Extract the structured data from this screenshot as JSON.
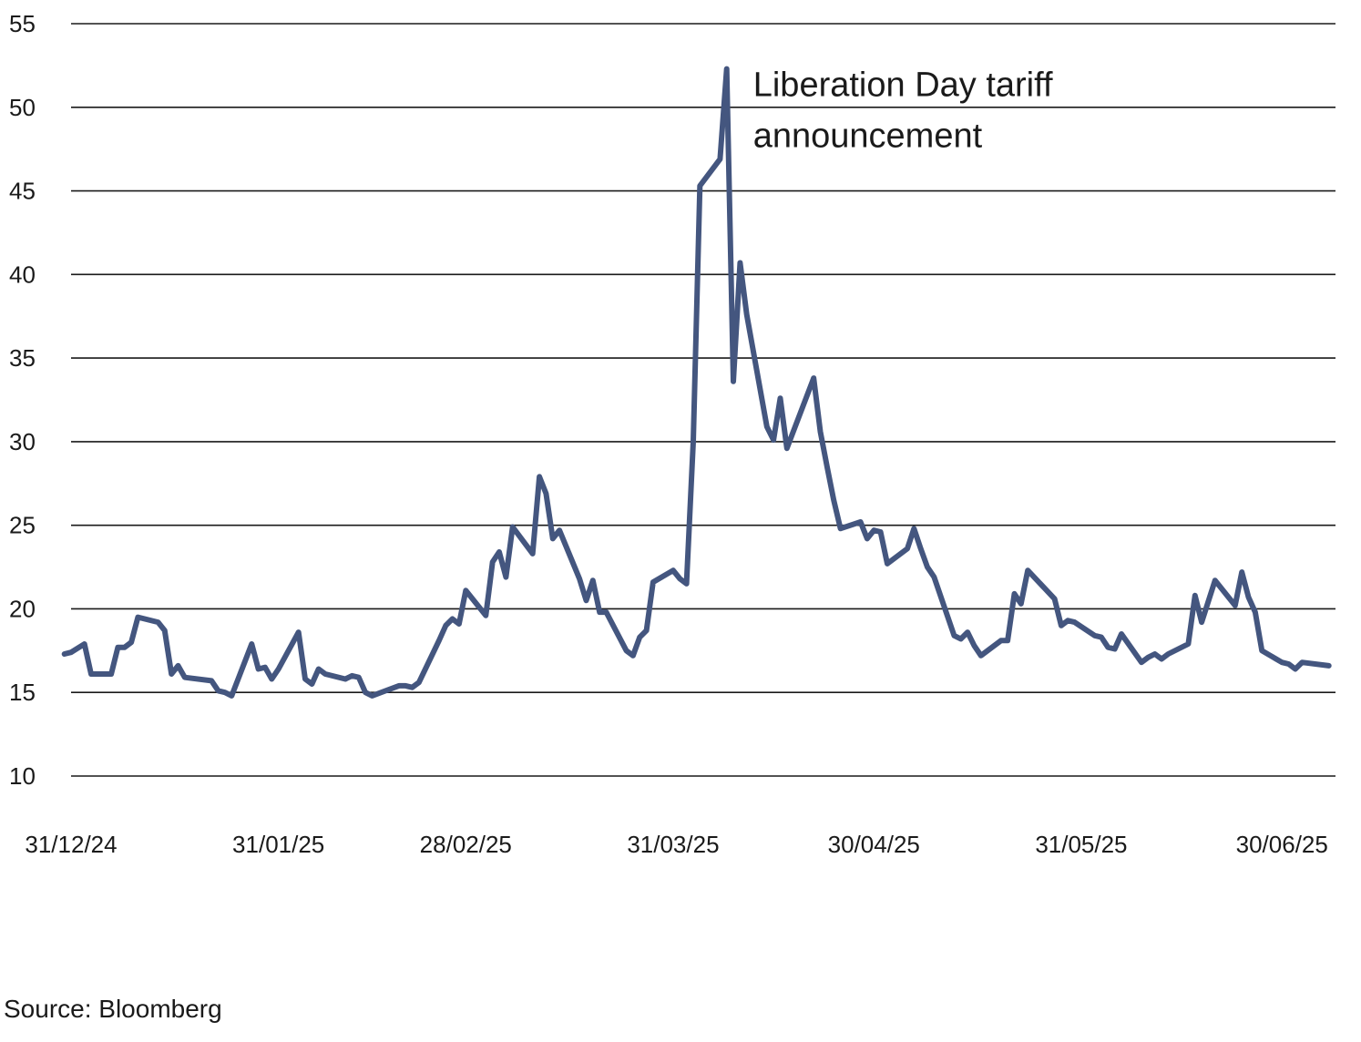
{
  "chart_data": {
    "type": "line",
    "title": "",
    "xlabel": "",
    "ylabel": "",
    "ylim": [
      10,
      55
    ],
    "yticks": [
      10,
      15,
      20,
      25,
      30,
      35,
      40,
      45,
      50,
      55
    ],
    "xlim": [
      "2024-12-31",
      "2025-07-08"
    ],
    "xticks": [
      {
        "date": "2024-12-31",
        "label": "31/12/24"
      },
      {
        "date": "2025-01-31",
        "label": "31/01/25"
      },
      {
        "date": "2025-02-28",
        "label": "28/02/25"
      },
      {
        "date": "2025-03-31",
        "label": "31/03/25"
      },
      {
        "date": "2025-04-30",
        "label": "30/04/25"
      },
      {
        "date": "2025-05-31",
        "label": "31/05/25"
      },
      {
        "date": "2025-06-30",
        "label": "30/06/25"
      }
    ],
    "grid": true,
    "line_color": "#44567f",
    "grid_color": "#1a1a1a",
    "annotation": {
      "lines": [
        "Liberation Day tariff",
        "announcement"
      ],
      "date": "2025-04-11",
      "y": 51
    },
    "series": [
      {
        "x": [
          "2024-12-30",
          "2024-12-31",
          "2025-01-02",
          "2025-01-03",
          "2025-01-06",
          "2025-01-07",
          "2025-01-08",
          "2025-01-09",
          "2025-01-10",
          "2025-01-13",
          "2025-01-14",
          "2025-01-15",
          "2025-01-16",
          "2025-01-17",
          "2025-01-21",
          "2025-01-22",
          "2025-01-23",
          "2025-01-24",
          "2025-01-27",
          "2025-01-28",
          "2025-01-29",
          "2025-01-30",
          "2025-01-31",
          "2025-02-03",
          "2025-02-04",
          "2025-02-05",
          "2025-02-06",
          "2025-02-07",
          "2025-02-10",
          "2025-02-11",
          "2025-02-12",
          "2025-02-13",
          "2025-02-14",
          "2025-02-18",
          "2025-02-19",
          "2025-02-20",
          "2025-02-21",
          "2025-02-24",
          "2025-02-25",
          "2025-02-26",
          "2025-02-27",
          "2025-02-28",
          "2025-03-03",
          "2025-03-04",
          "2025-03-05",
          "2025-03-06",
          "2025-03-07",
          "2025-03-10",
          "2025-03-11",
          "2025-03-12",
          "2025-03-13",
          "2025-03-14",
          "2025-03-17",
          "2025-03-18",
          "2025-03-19",
          "2025-03-20",
          "2025-03-21",
          "2025-03-24",
          "2025-03-25",
          "2025-03-26",
          "2025-03-27",
          "2025-03-28",
          "2025-03-31",
          "2025-04-01",
          "2025-04-02",
          "2025-04-03",
          "2025-04-04",
          "2025-04-07",
          "2025-04-08",
          "2025-04-09",
          "2025-04-10",
          "2025-04-11",
          "2025-04-14",
          "2025-04-15",
          "2025-04-16",
          "2025-04-17",
          "2025-04-21",
          "2025-04-22",
          "2025-04-23",
          "2025-04-24",
          "2025-04-25",
          "2025-04-28",
          "2025-04-29",
          "2025-04-30",
          "2025-05-01",
          "2025-05-02",
          "2025-05-05",
          "2025-05-06",
          "2025-05-07",
          "2025-05-08",
          "2025-05-09",
          "2025-05-12",
          "2025-05-13",
          "2025-05-14",
          "2025-05-15",
          "2025-05-16",
          "2025-05-19",
          "2025-05-20",
          "2025-05-21",
          "2025-05-22",
          "2025-05-23",
          "2025-05-27",
          "2025-05-28",
          "2025-05-29",
          "2025-05-30",
          "2025-06-02",
          "2025-06-03",
          "2025-06-04",
          "2025-06-05",
          "2025-06-06",
          "2025-06-09",
          "2025-06-10",
          "2025-06-11",
          "2025-06-12",
          "2025-06-13",
          "2025-06-16",
          "2025-06-17",
          "2025-06-18",
          "2025-06-20",
          "2025-06-23",
          "2025-06-24",
          "2025-06-25",
          "2025-06-26",
          "2025-06-27",
          "2025-06-30",
          "2025-07-01",
          "2025-07-02",
          "2025-07-03",
          "2025-07-07"
        ],
        "values": [
          17.3,
          17.4,
          17.9,
          16.1,
          16.1,
          17.7,
          17.7,
          18.0,
          19.5,
          19.2,
          18.7,
          16.1,
          16.6,
          15.9,
          15.7,
          15.1,
          15.0,
          14.8,
          17.9,
          16.4,
          16.5,
          15.8,
          16.4,
          18.6,
          15.8,
          15.5,
          16.4,
          16.1,
          15.8,
          16.0,
          15.9,
          15.0,
          14.8,
          15.4,
          15.4,
          15.3,
          15.6,
          18.1,
          19.0,
          19.4,
          19.1,
          21.1,
          19.6,
          22.8,
          23.4,
          21.9,
          24.9,
          23.3,
          27.9,
          26.9,
          24.2,
          24.7,
          21.8,
          20.5,
          21.7,
          19.8,
          19.8,
          17.5,
          17.2,
          18.3,
          18.7,
          21.6,
          22.3,
          21.8,
          21.5,
          30.0,
          45.3,
          46.9,
          52.3,
          33.6,
          40.7,
          37.6,
          30.9,
          30.1,
          32.6,
          29.6,
          33.8,
          30.6,
          28.5,
          26.5,
          24.8,
          25.2,
          24.2,
          24.7,
          24.6,
          22.7,
          23.6,
          24.8,
          23.6,
          22.5,
          21.9,
          18.4,
          18.2,
          18.6,
          17.8,
          17.2,
          18.1,
          18.1,
          20.9,
          20.3,
          22.3,
          20.6,
          19.0,
          19.3,
          19.2,
          18.4,
          18.3,
          17.7,
          17.6,
          18.5,
          16.8,
          17.1,
          17.3,
          17.0,
          17.3,
          17.9,
          20.8,
          19.2,
          21.7,
          20.2,
          22.2,
          20.7,
          19.8,
          17.5,
          16.8,
          16.7,
          16.4,
          16.8,
          16.6
        ]
      }
    ]
  },
  "source": "Source: Bloomberg"
}
